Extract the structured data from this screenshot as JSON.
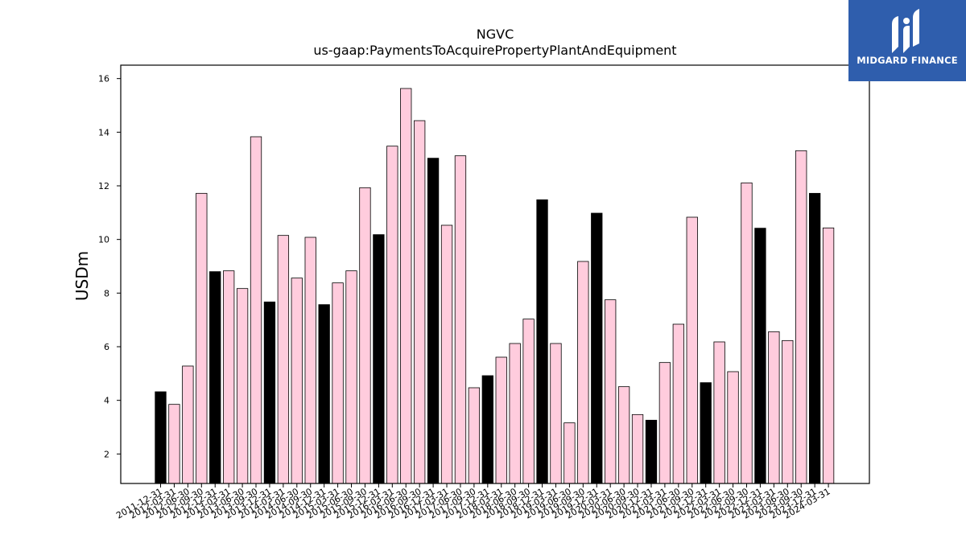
{
  "chart_data": {
    "type": "bar",
    "title": "NGVC",
    "subtitle": "us-gaap:PaymentsToAcquirePropertyPlantAndEquipment",
    "ylabel": "USDm",
    "xlabel": "",
    "ylim": [
      0.9,
      16.5
    ],
    "yticks": [
      2,
      4,
      6,
      8,
      10,
      12,
      14,
      16
    ],
    "grid": false,
    "categories": [
      "2011-12-31",
      "2012-03-31",
      "2012-06-30",
      "2012-09-30",
      "2012-12-31",
      "2013-03-31",
      "2013-06-30",
      "2013-09-30",
      "2013-12-31",
      "2014-03-31",
      "2014-06-30",
      "2014-09-30",
      "2014-12-31",
      "2015-03-31",
      "2015-06-30",
      "2015-09-30",
      "2015-12-31",
      "2016-03-31",
      "2016-06-30",
      "2016-09-30",
      "2016-12-31",
      "2017-03-31",
      "2017-06-30",
      "2017-09-30",
      "2017-12-31",
      "2018-03-31",
      "2018-06-30",
      "2018-09-30",
      "2018-12-31",
      "2019-03-31",
      "2019-06-30",
      "2019-09-30",
      "2019-12-31",
      "2020-03-31",
      "2020-06-30",
      "2020-09-30",
      "2020-12-31",
      "2021-03-31",
      "2021-06-30",
      "2021-09-30",
      "2021-12-31",
      "2022-03-31",
      "2022-06-30",
      "2022-09-30",
      "2022-12-31",
      "2023-03-31",
      "2023-06-30",
      "2023-09-30",
      "2023-12-31",
      "2024-03-31"
    ],
    "values": [
      4.32,
      3.85,
      5.28,
      11.72,
      8.8,
      8.83,
      8.17,
      13.83,
      7.67,
      10.15,
      8.56,
      10.08,
      7.57,
      8.38,
      8.83,
      11.93,
      10.18,
      13.48,
      15.63,
      14.43,
      13.03,
      10.53,
      13.12,
      4.47,
      4.92,
      5.61,
      6.12,
      7.03,
      11.48,
      6.12,
      3.16,
      9.18,
      10.98,
      7.75,
      4.51,
      3.47,
      3.26,
      5.41,
      6.84,
      10.83,
      4.66,
      6.18,
      5.07,
      12.11,
      10.42,
      6.56,
      6.23,
      13.31,
      11.72,
      10.43
    ],
    "highlight_indices": [
      0,
      4,
      8,
      12,
      16,
      20,
      24,
      28,
      32,
      36,
      40,
      44,
      48
    ],
    "colors": {
      "highlight": "#000000",
      "normal": "#ffccdd",
      "edge": "#000000"
    }
  },
  "logo": {
    "text": "MIDGARD FINANCE",
    "background": "#2f5ead"
  }
}
